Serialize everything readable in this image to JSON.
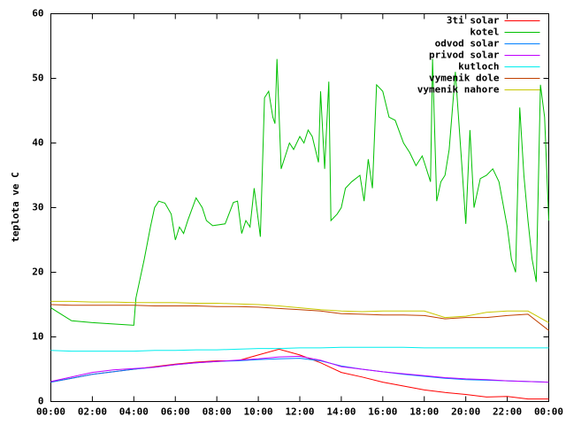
{
  "chart_data": {
    "type": "line",
    "y_label": "teplota ve C",
    "xlim": [
      0,
      24
    ],
    "ylim": [
      0,
      60
    ],
    "xticks": [
      {
        "value": 0,
        "label": "00:00"
      },
      {
        "value": 2,
        "label": "02:00"
      },
      {
        "value": 4,
        "label": "04:00"
      },
      {
        "value": 6,
        "label": "06:00"
      },
      {
        "value": 8,
        "label": "08:00"
      },
      {
        "value": 10,
        "label": "10:00"
      },
      {
        "value": 12,
        "label": "12:00"
      },
      {
        "value": 14,
        "label": "14:00"
      },
      {
        "value": 16,
        "label": "16:00"
      },
      {
        "value": 18,
        "label": "18:00"
      },
      {
        "value": 20,
        "label": "20:00"
      },
      {
        "value": 22,
        "label": "22:00"
      },
      {
        "value": 24,
        "label": "00:00"
      }
    ],
    "yticks": [
      0,
      10,
      20,
      30,
      40,
      50,
      60
    ],
    "grid": false,
    "legend": "top-right",
    "x": [
      0,
      1,
      2,
      3,
      4,
      5,
      6,
      7,
      8,
      9,
      10,
      11,
      12,
      13,
      14,
      15,
      16,
      17,
      18,
      19,
      20,
      21,
      22,
      23,
      24
    ],
    "series": [
      {
        "name": "3ti solar",
        "color": "#ff0000",
        "values": [
          3,
          3.6,
          4.2,
          4.6,
          5,
          5.4,
          5.8,
          6.1,
          6.3,
          6.3,
          7.2,
          8.1,
          7.2,
          6,
          4.5,
          3.8,
          3,
          2.4,
          1.8,
          1.4,
          1.1,
          0.7,
          0.8,
          0.4,
          0.4
        ]
      },
      {
        "name": "kotel",
        "color": "#00c000",
        "x": [
          0,
          0.5,
          1,
          2,
          3,
          4,
          4.1,
          4.5,
          4.8,
          5,
          5.2,
          5.5,
          5.8,
          6,
          6.2,
          6.4,
          6.6,
          7,
          7.3,
          7.5,
          7.8,
          8.4,
          8.8,
          9,
          9.2,
          9.4,
          9.6,
          9.8,
          10,
          10.1,
          10.3,
          10.5,
          10.7,
          10.8,
          10.9,
          11.1,
          11.3,
          11.5,
          11.7,
          12,
          12.2,
          12.4,
          12.6,
          12.9,
          13,
          13.2,
          13.4,
          13.5,
          13.8,
          14,
          14.2,
          14.5,
          14.9,
          15.1,
          15.3,
          15.5,
          15.7,
          16,
          16.3,
          16.6,
          17,
          17.3,
          17.6,
          17.9,
          18,
          18.3,
          18.4,
          18.6,
          18.8,
          19,
          19.2,
          19.5,
          19.8,
          20,
          20.2,
          20.4,
          20.7,
          21,
          21.3,
          21.6,
          22,
          22.2,
          22.4,
          22.6,
          22.8,
          23,
          23.2,
          23.4,
          23.6,
          23.8,
          24
        ],
        "values": [
          14.5,
          13.5,
          12.5,
          12.2,
          12,
          11.8,
          16,
          22,
          27,
          30,
          31,
          30.7,
          29,
          25,
          27,
          26,
          28,
          31.5,
          30,
          28,
          27.2,
          27.5,
          30.8,
          31,
          26,
          28,
          27,
          33,
          28,
          25.5,
          47,
          48,
          44,
          43,
          53,
          36,
          38,
          40,
          39,
          41,
          40,
          42,
          41,
          37,
          48,
          36,
          49.5,
          28,
          29,
          30,
          33,
          34,
          35,
          31,
          37.5,
          33,
          49,
          48,
          44,
          43.5,
          40,
          38.5,
          36.5,
          38,
          37,
          34,
          53,
          31,
          34,
          35,
          39,
          51,
          37,
          27.5,
          42,
          30,
          34.5,
          35,
          36,
          34,
          27,
          22,
          20,
          45.5,
          35,
          28,
          22,
          18.5,
          49,
          44,
          28
        ]
      },
      {
        "name": "odvod solar",
        "color": "#0080ff",
        "values": [
          3,
          3.6,
          4.2,
          4.6,
          5,
          5.3,
          5.7,
          6,
          6.2,
          6.3,
          6.5,
          6.6,
          6.7,
          6.3,
          5.5,
          5,
          4.6,
          4.2,
          3.9,
          3.6,
          3.4,
          3.3,
          3.2,
          3.1,
          3
        ]
      },
      {
        "name": "privod solar",
        "color": "#c000ff",
        "values": [
          3.1,
          3.8,
          4.5,
          4.9,
          5.1,
          5.3,
          5.7,
          6,
          6.2,
          6.4,
          6.6,
          6.9,
          7,
          6.4,
          5.4,
          5,
          4.6,
          4.3,
          4,
          3.7,
          3.5,
          3.4,
          3.2,
          3.1,
          3
        ]
      },
      {
        "name": "kutloch",
        "color": "#00eeee",
        "values": [
          7.9,
          7.8,
          7.8,
          7.8,
          7.8,
          7.9,
          7.9,
          8,
          8,
          8.1,
          8.2,
          8.2,
          8.3,
          8.3,
          8.4,
          8.4,
          8.4,
          8.4,
          8.3,
          8.3,
          8.3,
          8.3,
          8.3,
          8.3,
          8.3
        ]
      },
      {
        "name": "vymenik dole",
        "color": "#c04000",
        "values": [
          15,
          14.9,
          14.9,
          14.9,
          14.9,
          14.8,
          14.8,
          14.8,
          14.7,
          14.7,
          14.6,
          14.4,
          14.2,
          14,
          13.6,
          13.5,
          13.4,
          13.4,
          13.3,
          12.8,
          13,
          13,
          13.3,
          13.5,
          11
        ]
      },
      {
        "name": "vymenik nahore",
        "color": "#c8c800",
        "values": [
          15.5,
          15.5,
          15.4,
          15.4,
          15.3,
          15.3,
          15.3,
          15.2,
          15.2,
          15.1,
          15,
          14.8,
          14.5,
          14.2,
          14,
          13.9,
          14,
          14,
          14,
          13,
          13.2,
          13.8,
          14,
          14,
          12.2
        ]
      }
    ]
  }
}
